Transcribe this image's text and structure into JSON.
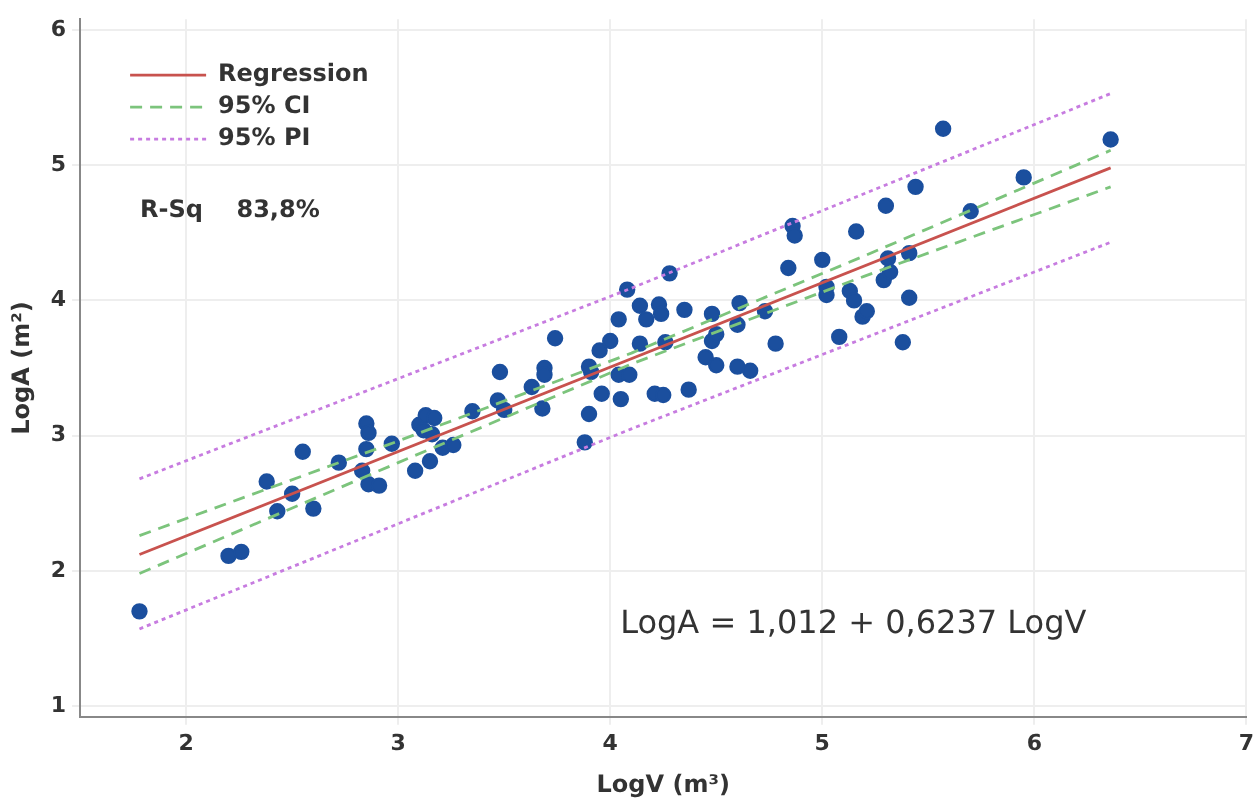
{
  "chart_data": {
    "type": "scatter",
    "xlabel": "LogV (m³)",
    "ylabel": "LogA (m²)",
    "xlim": [
      1.5,
      7
    ],
    "ylim": [
      0.92,
      6.08
    ],
    "xticks": [
      2,
      3,
      4,
      5,
      6,
      7
    ],
    "yticks": [
      1,
      2,
      3,
      4,
      5,
      6
    ],
    "grid": true,
    "legend": "top left",
    "marker": "circle",
    "annotations": [
      "R-Sq    83,8%",
      "LogA = 1,012 + 0,6237 LogV"
    ],
    "series": [
      {
        "type": "line",
        "name": "Regression",
        "color": "#c8524e",
        "line_style": "solid",
        "marker": "none",
        "x": [
          1.78,
          6.36
        ],
        "values": [
          2.12,
          4.98
        ]
      },
      {
        "type": "line",
        "name": "95% CI",
        "color": "#7cc47c",
        "line_style": "dashed",
        "marker": "none",
        "x": [
          1.78,
          3,
          4.1,
          5.2,
          6.36
        ],
        "values": [
          2.26,
          2.96,
          3.61,
          4.33,
          5.11
        ]
      },
      {
        "type": "line",
        "color": "#7cc47c",
        "line_style": "dashed",
        "marker": "none",
        "x": [
          1.78,
          3,
          4.1,
          5.2,
          6.36
        ],
        "values": [
          1.98,
          2.8,
          3.53,
          4.18,
          4.84
        ]
      },
      {
        "type": "line",
        "name": "95% PI",
        "color": "#c77ce0",
        "line_style": "dotted",
        "marker": "none",
        "x": [
          1.78,
          4.1,
          6.36
        ],
        "values": [
          2.68,
          4.09,
          5.53
        ]
      },
      {
        "type": "line",
        "color": "#c77ce0",
        "line_style": "dotted",
        "marker": "none",
        "x": [
          1.78,
          4.1,
          6.36
        ],
        "values": [
          1.57,
          3.05,
          4.43
        ]
      },
      {
        "color": "#1b4f9e",
        "x": [
          1.78,
          2.2,
          2.26,
          2.38,
          2.43,
          2.5,
          2.55,
          2.6,
          2.72,
          2.83,
          2.85,
          2.86,
          2.85,
          2.86,
          2.91,
          2.97,
          3.08,
          3.1,
          3.13,
          3.12,
          3.15,
          3.17,
          3.16,
          3.21,
          3.26,
          3.35,
          3.48,
          3.47,
          3.5,
          3.63,
          3.68,
          3.69,
          3.69,
          3.74,
          3.88,
          3.9,
          3.9,
          3.91,
          3.95,
          3.96,
          4.0,
          4.04,
          4.04,
          4.05,
          4.08,
          4.09,
          4.14,
          4.14,
          4.17,
          4.21,
          4.25,
          4.23,
          4.24,
          4.26,
          4.28,
          4.35,
          4.37,
          4.45,
          4.48,
          4.48,
          4.5,
          4.5,
          4.6,
          4.61,
          4.6,
          4.66,
          4.73,
          4.78,
          4.84,
          4.86,
          4.87,
          5.0,
          5.02,
          5.02,
          5.08,
          5.13,
          5.15,
          5.16,
          5.19,
          5.21,
          5.29,
          5.3,
          5.31,
          5.32,
          5.38,
          5.41,
          5.41,
          5.44,
          5.57,
          5.7,
          5.95,
          6.36
        ],
        "values": [
          1.7,
          2.11,
          2.14,
          2.66,
          2.44,
          2.57,
          2.88,
          2.46,
          2.8,
          2.74,
          3.09,
          3.02,
          2.9,
          2.64,
          2.63,
          2.94,
          2.74,
          3.08,
          3.15,
          3.04,
          2.81,
          3.13,
          3.01,
          2.91,
          2.93,
          3.18,
          3.47,
          3.26,
          3.19,
          3.36,
          3.2,
          3.5,
          3.45,
          3.72,
          2.95,
          3.16,
          3.51,
          3.47,
          3.63,
          3.31,
          3.7,
          3.86,
          3.45,
          3.27,
          4.08,
          3.45,
          3.68,
          3.96,
          3.86,
          3.31,
          3.3,
          3.97,
          3.9,
          3.69,
          4.2,
          3.93,
          3.34,
          3.58,
          3.9,
          3.7,
          3.75,
          3.52,
          3.82,
          3.98,
          3.51,
          3.48,
          3.92,
          3.68,
          4.24,
          4.55,
          4.48,
          4.3,
          4.1,
          4.04,
          3.73,
          4.07,
          4.0,
          4.51,
          3.88,
          3.92,
          4.15,
          4.7,
          4.31,
          4.21,
          3.69,
          4.02,
          4.35,
          4.84,
          5.27,
          4.66,
          4.91,
          5.19
        ]
      }
    ]
  }
}
